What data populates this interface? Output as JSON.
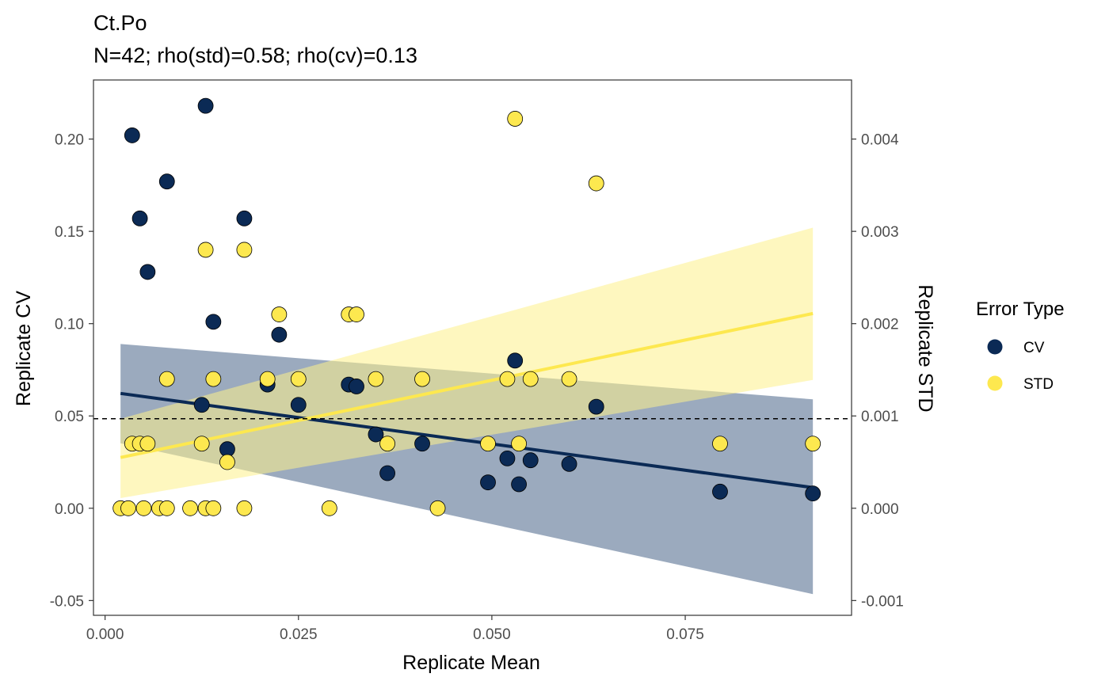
{
  "chart_data": {
    "type": "scatter",
    "title": "Ct.Po",
    "subtitle": "N=42; rho(std)=0.58; rho(cv)=0.13",
    "xlabel": "Replicate Mean",
    "ylabel": "Replicate CV",
    "y2label": "Replicate STD",
    "xlim": [
      -0.0015,
      0.0965
    ],
    "ylim": [
      -0.058,
      0.232
    ],
    "y2lim": [
      -0.00116,
      0.00464
    ],
    "x_ticks": [
      "0.000",
      "0.025",
      "0.050",
      "0.075"
    ],
    "x_tick_values": [
      0,
      0.025,
      0.05,
      0.075
    ],
    "y_ticks": [
      "-0.05",
      "0.00",
      "0.05",
      "0.10",
      "0.15",
      "0.20"
    ],
    "y_tick_values": [
      -0.05,
      0,
      0.05,
      0.1,
      0.15,
      0.2
    ],
    "y2_ticks": [
      "-0.001",
      "0.000",
      "0.001",
      "0.002",
      "0.003",
      "0.004"
    ],
    "y2_tick_values": [
      -0.001,
      0,
      0.001,
      0.002,
      0.003,
      0.004
    ],
    "reference_line_y": 0.0485,
    "grid": false,
    "legend": {
      "title": "Error Type",
      "position": "right",
      "entries": [
        "CV",
        "STD"
      ]
    },
    "colors": {
      "CV": "#0b2a55",
      "STD": "#fde84f",
      "CV_band": "#8a9bb3",
      "STD_band": "#fdf08a"
    },
    "series": [
      {
        "name": "CV",
        "axis": "left",
        "points": [
          [
            0.0035,
            0.202
          ],
          [
            0.0045,
            0.157
          ],
          [
            0.0055,
            0.128
          ],
          [
            0.008,
            0.177
          ],
          [
            0.0125,
            0.056
          ],
          [
            0.013,
            0.218
          ],
          [
            0.014,
            0.101
          ],
          [
            0.0158,
            0.032
          ],
          [
            0.018,
            0.157
          ],
          [
            0.021,
            0.067
          ],
          [
            0.0225,
            0.094
          ],
          [
            0.025,
            0.056
          ],
          [
            0.0315,
            0.067
          ],
          [
            0.0325,
            0.066
          ],
          [
            0.035,
            0.04
          ],
          [
            0.0365,
            0.019
          ],
          [
            0.041,
            0.035
          ],
          [
            0.0495,
            0.014
          ],
          [
            0.052,
            0.027
          ],
          [
            0.053,
            0.08
          ],
          [
            0.0535,
            0.013
          ],
          [
            0.055,
            0.026
          ],
          [
            0.06,
            0.024
          ],
          [
            0.0635,
            0.055
          ],
          [
            0.0795,
            0.009
          ],
          [
            0.0915,
            0.008
          ]
        ],
        "fit": {
          "x": [
            0.002,
            0.0915
          ],
          "y": [
            0.0622,
            0.0112
          ]
        },
        "band": {
          "x": [
            0.002,
            0.0915
          ],
          "lower": [
            0.0352,
            -0.0465
          ],
          "upper": [
            0.089,
            0.059
          ]
        }
      },
      {
        "name": "STD",
        "axis": "right",
        "points": [
          [
            0.002,
            0.0
          ],
          [
            0.003,
            0.0
          ],
          [
            0.0035,
            0.0007
          ],
          [
            0.0045,
            0.0007
          ],
          [
            0.005,
            0.0
          ],
          [
            0.0055,
            0.0007
          ],
          [
            0.007,
            0.0
          ],
          [
            0.008,
            0.0014
          ],
          [
            0.008,
            0.0
          ],
          [
            0.011,
            0.0
          ],
          [
            0.0125,
            0.0007
          ],
          [
            0.013,
            0.0028
          ],
          [
            0.013,
            0.0
          ],
          [
            0.014,
            0.0014
          ],
          [
            0.014,
            0.0
          ],
          [
            0.0158,
            0.0005
          ],
          [
            0.018,
            0.0028
          ],
          [
            0.018,
            0.0
          ],
          [
            0.021,
            0.0014
          ],
          [
            0.0225,
            0.0021
          ],
          [
            0.025,
            0.0014
          ],
          [
            0.029,
            0.0
          ],
          [
            0.0315,
            0.0021
          ],
          [
            0.0325,
            0.0021
          ],
          [
            0.035,
            0.0014
          ],
          [
            0.0365,
            0.0007
          ],
          [
            0.041,
            0.0014
          ],
          [
            0.043,
            0.0
          ],
          [
            0.0495,
            0.0007
          ],
          [
            0.052,
            0.0014
          ],
          [
            0.053,
            0.00422
          ],
          [
            0.0535,
            0.0007
          ],
          [
            0.055,
            0.0014
          ],
          [
            0.06,
            0.0014
          ],
          [
            0.0635,
            0.00352
          ],
          [
            0.0795,
            0.0007
          ],
          [
            0.0915,
            0.0007
          ]
        ],
        "fit": {
          "x": [
            0.002,
            0.0915
          ],
          "y": [
            0.00055,
            0.00211
          ]
        },
        "band": {
          "x": [
            0.002,
            0.0915
          ],
          "lower": [
            0.00011,
            0.00139
          ],
          "upper": [
            0.00097,
            0.00304
          ]
        }
      }
    ]
  }
}
